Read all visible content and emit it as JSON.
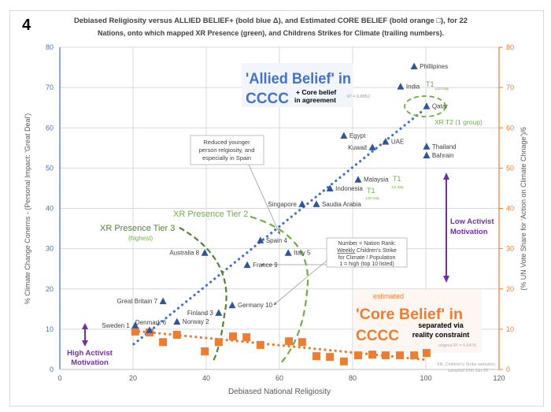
{
  "figure_number": "4",
  "chart_data": {
    "type": "scatter",
    "title_line1": "Debiased Religiosity versus ALLIED BELIEF+ (bold blue Δ), and Estimated CORE BELIEF (bold orange □), for 22",
    "title_line2": "Nations, onto which mapped XR Presence (green), and Childrens Strikes for Climate (trailing numbers).",
    "xlabel": "Debiased National Religiosity",
    "ylabel": "% Climate Change Conerns - (Personal Impact: 'Great Deal')",
    "y2label": "(% UN Vote Share for 'Action on Climate Chnage')/6",
    "xlim": [
      0,
      120
    ],
    "ylim": [
      0,
      80
    ],
    "y2lim": [
      0,
      80
    ],
    "xticks": [
      "0",
      "20",
      "40",
      "60",
      "80",
      "100",
      "120"
    ],
    "yticks": [
      "0",
      "10",
      "20",
      "30",
      "40",
      "50",
      "60",
      "70",
      "80"
    ],
    "y2ticks": [
      "0",
      "10",
      "20",
      "30",
      "40",
      "50",
      "60",
      "70",
      "80"
    ],
    "grid": true,
    "colors": {
      "allied": "#4472c4",
      "core": "#ed7d31",
      "xr": "#70ad47",
      "xr_dark": "#548235",
      "activist": "#7030a0",
      "grid": "#d9d9d9"
    },
    "series": [
      {
        "name": "ALLIED BELIEF+",
        "marker": "triangle",
        "points": [
          {
            "label": "Phillipines",
            "x": 96.8,
            "y": 75.3
          },
          {
            "label": "India",
            "x": 93.1,
            "y": 70.3
          },
          {
            "label": "Qatar",
            "x": 100.2,
            "y": 65.4
          },
          {
            "label": "Egypt",
            "x": 77.6,
            "y": 58.1
          },
          {
            "label": "Kuwait",
            "x": 85.4,
            "y": 55.2
          },
          {
            "label": "UAE",
            "x": 89.0,
            "y": 56.6
          },
          {
            "label": "Thailand",
            "x": 100.2,
            "y": 55.4
          },
          {
            "label": "Bahrain",
            "x": 100.2,
            "y": 53.2
          },
          {
            "label": "Malaysia",
            "x": 81.5,
            "y": 47.2
          },
          {
            "label": "Indonesia",
            "x": 73.8,
            "y": 45.0
          },
          {
            "label": "Singapore",
            "x": 66.2,
            "y": 41.1
          },
          {
            "label": "Saudia Arabia",
            "x": 70.1,
            "y": 41.1
          },
          {
            "label": "Spain 4",
            "x": 54.8,
            "y": 32.1
          },
          {
            "label": "Italy 5",
            "x": 62.4,
            "y": 29.0
          },
          {
            "label": "France 9",
            "x": 51.2,
            "y": 26.0
          },
          {
            "label": "Australia 8",
            "x": 39.6,
            "y": 29.0
          },
          {
            "label": "Germany 10",
            "x": 47.1,
            "y": 16.0
          },
          {
            "label": "Great Britain 7",
            "x": 28.2,
            "y": 17.0
          },
          {
            "label": "Finland 3",
            "x": 43.4,
            "y": 14.1
          },
          {
            "label": "Norway 2",
            "x": 32.0,
            "y": 11.9
          },
          {
            "label": "Denmark 6",
            "x": 24.5,
            "y": 9.8
          },
          {
            "label": "Sweden 1",
            "x": 20.6,
            "y": 11.0
          }
        ],
        "trend": {
          "type": "linear",
          "from": [
            20.2,
            6.3
          ],
          "to": [
            99.5,
            64.5
          ],
          "r2": "R² = 0.8852"
        }
      },
      {
        "name": "Estimated CORE BELIEF",
        "marker": "square",
        "points": [
          {
            "x": 20.6,
            "y": 9.4
          },
          {
            "x": 24.5,
            "y": 9.2
          },
          {
            "x": 28.2,
            "y": 6.8
          },
          {
            "x": 32.0,
            "y": 8.6
          },
          {
            "x": 39.6,
            "y": 4.5
          },
          {
            "x": 43.4,
            "y": 6.8
          },
          {
            "x": 47.3,
            "y": 8.2
          },
          {
            "x": 51.0,
            "y": 8.0
          },
          {
            "x": 54.8,
            "y": 6.1
          },
          {
            "x": 62.6,
            "y": 7.0
          },
          {
            "x": 66.2,
            "y": 6.8
          },
          {
            "x": 70.1,
            "y": 3.3
          },
          {
            "x": 73.8,
            "y": 3.1
          },
          {
            "x": 77.6,
            "y": 2.0
          },
          {
            "x": 81.5,
            "y": 3.5
          },
          {
            "x": 85.4,
            "y": 3.7
          },
          {
            "x": 89.0,
            "y": 3.5
          },
          {
            "x": 92.9,
            "y": 3.5
          },
          {
            "x": 96.8,
            "y": 3.5
          },
          {
            "x": 100.2,
            "y": 4.1
          }
        ],
        "trend": {
          "type": "linear",
          "from": [
            20.2,
            9.6
          ],
          "to": [
            100.2,
            2.4
          ],
          "r2": "original R² = 0.6476"
        }
      }
    ],
    "annotations": {
      "allied_title_1": "'Allied Belief' in",
      "allied_title_2": "CCCC",
      "allied_sub_1": "+ Core belief",
      "allied_sub_2": "in agreement",
      "core_estimated": "estimated",
      "core_title_1": "'Core Belief' in",
      "core_title_2": "CCCC",
      "core_sub_1": "separated via",
      "core_sub_2": "reality constraint",
      "xr_tier2": "XR Presence Tier 2",
      "xr_tier3": "XR Presence Tier 3",
      "xr_tier3_sub": "(highest)",
      "xr_t2_qatar": "XR T2 (1 group)",
      "t1_india": "T1",
      "t1_india_sub": "1/33 Italy",
      "t1_malaysia": "T1",
      "t1_malaysia_sub": "1/4 Italy",
      "t1_indonesia": "T1",
      "t1_indonesia_sub": "1/20 Italy",
      "low_activist_1": "Low Activist",
      "low_activist_2": "Motivation",
      "high_activist_1": "High Activist",
      "high_activist_2": "Motivation",
      "spain_note_1": "Reduced younger",
      "spain_note_2": "person relgiosity, and",
      "spain_note_3": "especially in Spain",
      "rank_note_1": "Number = Nation Rank:",
      "rank_note_2_u": "Weekly",
      "rank_note_2_rest": " Children's Strike",
      "rank_note_3": "for Climate / Population",
      "rank_note_4": "1 = high (top 10 listed)",
      "source_1": "XR, Children's Strike websites,",
      "source_2": "sampled 10th Jan 20"
    }
  }
}
